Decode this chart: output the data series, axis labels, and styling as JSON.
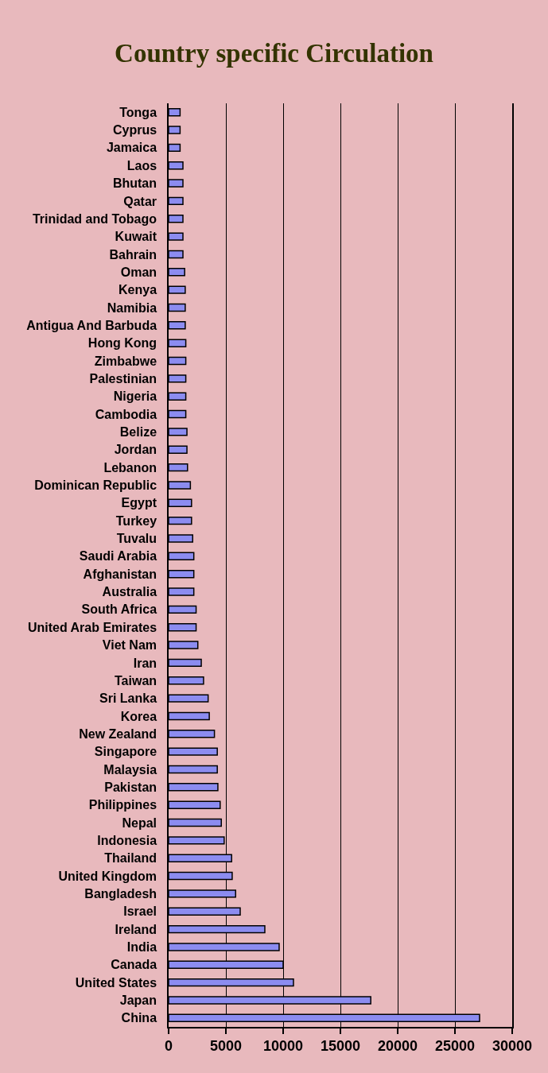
{
  "chart_data": {
    "type": "bar",
    "title": "Country specific Circulation",
    "orientation": "horizontal",
    "categories": [
      "Tonga",
      "Cyprus",
      "Jamaica",
      "Laos",
      "Bhutan",
      "Qatar",
      "Trinidad and Tobago",
      "Kuwait",
      "Bahrain",
      "Oman",
      "Kenya",
      "Namibia",
      "Antigua And Barbuda",
      "Hong Kong",
      "Zimbabwe",
      "Palestinian",
      "Nigeria",
      "Cambodia",
      "Belize",
      "Jordan",
      "Lebanon",
      "Dominican Republic",
      "Egypt",
      "Turkey",
      "Tuvalu",
      "Saudi Arabia",
      "Afghanistan",
      "Australia",
      "South Africa",
      "United Arab Emirates",
      "Viet Nam",
      "Iran",
      "Taiwan",
      "Sri Lanka",
      "Korea",
      "New Zealand",
      "Singapore",
      "Malaysia",
      "Pakistan",
      "Philippines",
      "Nepal",
      "Indonesia",
      "Thailand",
      "United Kingdom",
      "Bangladesh",
      "Israel",
      "Ireland",
      "India",
      "Canada",
      "United States",
      "Japan",
      "China"
    ],
    "values": [
      1000,
      1000,
      1000,
      1250,
      1250,
      1250,
      1250,
      1250,
      1250,
      1400,
      1450,
      1450,
      1450,
      1500,
      1500,
      1500,
      1500,
      1500,
      1600,
      1600,
      1650,
      1900,
      2000,
      2000,
      2100,
      2200,
      2200,
      2200,
      2400,
      2400,
      2550,
      2850,
      3050,
      3450,
      3550,
      4000,
      4250,
      4250,
      4300,
      4500,
      4600,
      4850,
      5500,
      5550,
      5850,
      6250,
      8400,
      9650,
      10000,
      10900,
      17650,
      27150
    ],
    "color": "#8c8cf0",
    "xlim": [
      0,
      30000
    ],
    "xticks": [
      0,
      5000,
      10000,
      15000,
      20000,
      25000,
      30000
    ],
    "grid": "x"
  }
}
